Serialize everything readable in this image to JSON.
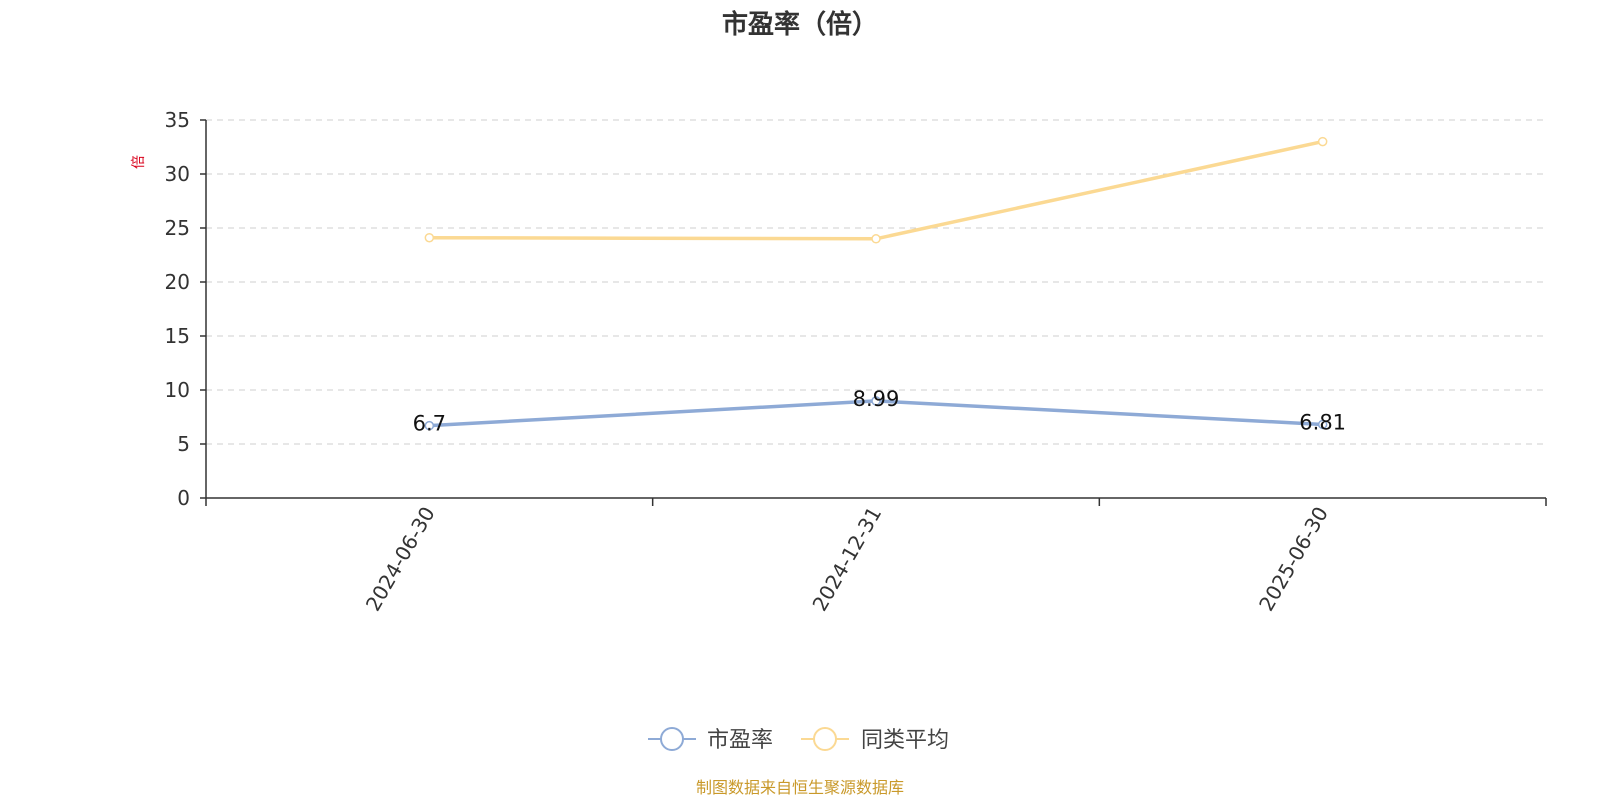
{
  "chart_data": {
    "type": "line",
    "title": "市盈率（倍）",
    "ylabel": "倍",
    "xlabel": "",
    "x": [
      "2024-06-30",
      "2024-12-31",
      "2025-06-30"
    ],
    "ylim": [
      0,
      35
    ],
    "yticks": [
      0,
      5,
      10,
      15,
      20,
      25,
      30,
      35
    ],
    "grid": true,
    "legend_position": "bottom-center",
    "series": [
      {
        "name": "市盈率",
        "values": [
          6.7,
          8.99,
          6.81
        ],
        "color": "#8eaad6",
        "show_labels": true
      },
      {
        "name": "同类平均",
        "values": [
          24.1,
          24.0,
          33.0
        ],
        "color": "#fbd993",
        "show_labels": false
      }
    ],
    "source_note": "制图数据来自恒生聚源数据库"
  }
}
